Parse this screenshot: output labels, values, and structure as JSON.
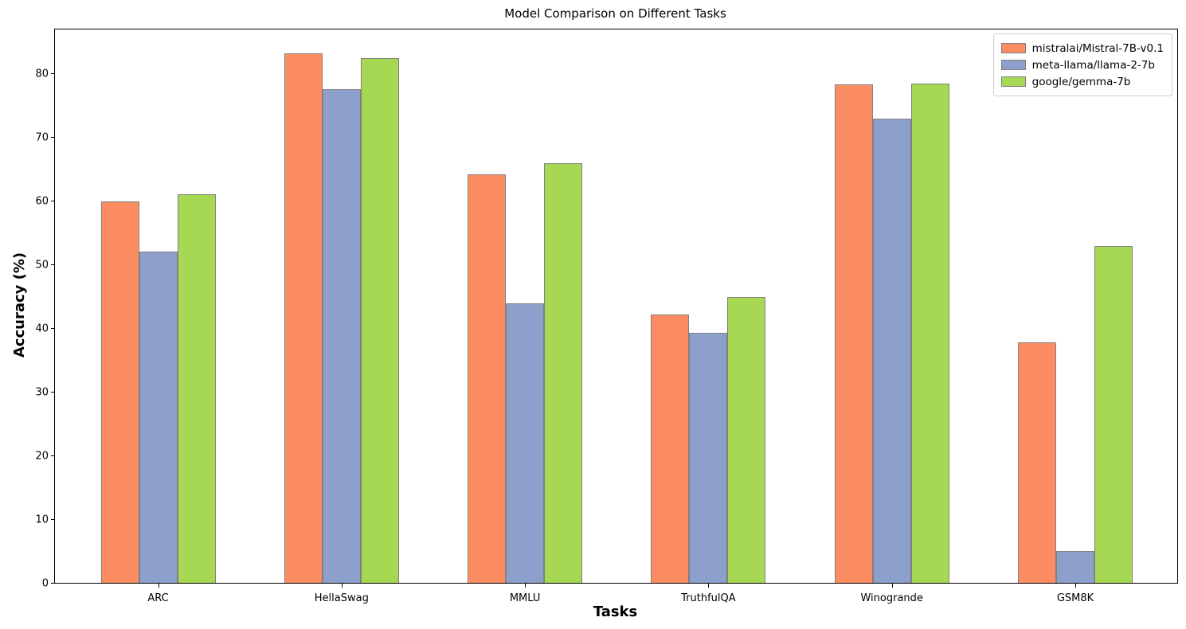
{
  "chart_data": {
    "type": "bar",
    "title": "Model Comparison on Different Tasks",
    "xlabel": "Tasks",
    "ylabel": "Accuracy (%)",
    "categories": [
      "ARC",
      "HellaSwag",
      "MMLU",
      "TruthfulQA",
      "Winogrande",
      "GSM8K"
    ],
    "series": [
      {
        "name": "mistralai/Mistral-7B-v0.1",
        "color": "#FC8D62",
        "values": [
          60.0,
          83.3,
          64.2,
          42.2,
          78.4,
          37.8
        ]
      },
      {
        "name": "meta-llama/llama-2-7b",
        "color": "#8DA0CB",
        "values": [
          52.1,
          77.6,
          44.0,
          39.3,
          73.0,
          5.0
        ]
      },
      {
        "name": "google/gemma-7b",
        "color": "#A6D854",
        "values": [
          61.1,
          82.5,
          66.0,
          45.0,
          78.5,
          52.9
        ]
      }
    ],
    "ylim": [
      0,
      87
    ],
    "yticks": [
      0,
      10,
      20,
      30,
      40,
      50,
      60,
      70,
      80
    ],
    "grid": false,
    "legend_position": "upper right",
    "bar_edge_color": "#808080",
    "background_color": "#ffffff"
  }
}
